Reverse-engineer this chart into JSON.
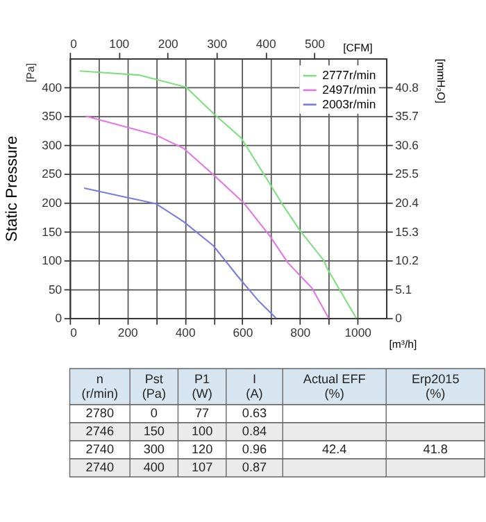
{
  "chart_data": [
    {
      "type": "line",
      "ylabel": "Static Pressure",
      "xlabel": "[m³/h]",
      "x2label": "[CFM]",
      "y2label": "[mmH₂O]",
      "annotations": [
        "[Pa]"
      ],
      "xlim": [
        0,
        1100
      ],
      "xticks": [
        0,
        {
          "value": 100,
          "label": null
        },
        200,
        {
          "value": 300,
          "label": null
        },
        400,
        {
          "value": 500,
          "label": null
        },
        600,
        {
          "value": 700,
          "label": null
        },
        800,
        {
          "value": 900,
          "label": null
        },
        1000
      ],
      "x2lim": [
        0,
        647
      ],
      "x2ticks": [
        0,
        100,
        200,
        300,
        400,
        500
      ],
      "ylim": [
        0,
        450
      ],
      "yticks": [
        0,
        50,
        100,
        150,
        200,
        250,
        300,
        350,
        400
      ],
      "y2lim": [
        0,
        45.9
      ],
      "y2ticks": [
        0,
        5.1,
        10.2,
        15.3,
        20.4,
        25.5,
        30.6,
        35.7,
        40.8
      ],
      "grid": true,
      "legend": "top right",
      "line_style": "solid",
      "marker": "none",
      "series": [
        {
          "name": "2777r/min",
          "color": "#7edf7e",
          "x": [
            35,
            240,
            404,
            500,
            596,
            700,
            738,
            800,
            883,
            896,
            996
          ],
          "values": [
            428,
            421,
            400,
            354,
            312,
            229,
            198,
            152,
            100,
            85,
            0
          ]
        },
        {
          "name": "2497r/min",
          "color": "#e276e2",
          "x": [
            55,
            300,
            396,
            500,
            604,
            696,
            758,
            842,
            900
          ],
          "values": [
            350,
            317,
            294,
            248,
            200,
            142,
            96,
            52,
            0
          ]
        },
        {
          "name": "2003r/min",
          "color": "#7b7be4",
          "x": [
            50,
            188,
            300,
            396,
            500,
            583,
            654,
            717
          ],
          "values": [
            225,
            210,
            198,
            167,
            125,
            73,
            31,
            0
          ]
        }
      ]
    },
    {
      "type": "other",
      "categories": [
        "n (r/min)",
        "Pst (Pa)",
        "P1 (W)",
        "I (A)",
        "Actual EFF (%)",
        "Erp2015 (%)"
      ],
      "annotations": [
        "2780",
        "0",
        "77",
        "0.63",
        null,
        null,
        "2746",
        "150",
        "100",
        "0.84",
        null,
        null,
        "2740",
        "300",
        "120",
        "0.96",
        "42.4",
        "41.8",
        "2740",
        "400",
        "107",
        "0.87",
        null,
        null
      ]
    }
  ]
}
